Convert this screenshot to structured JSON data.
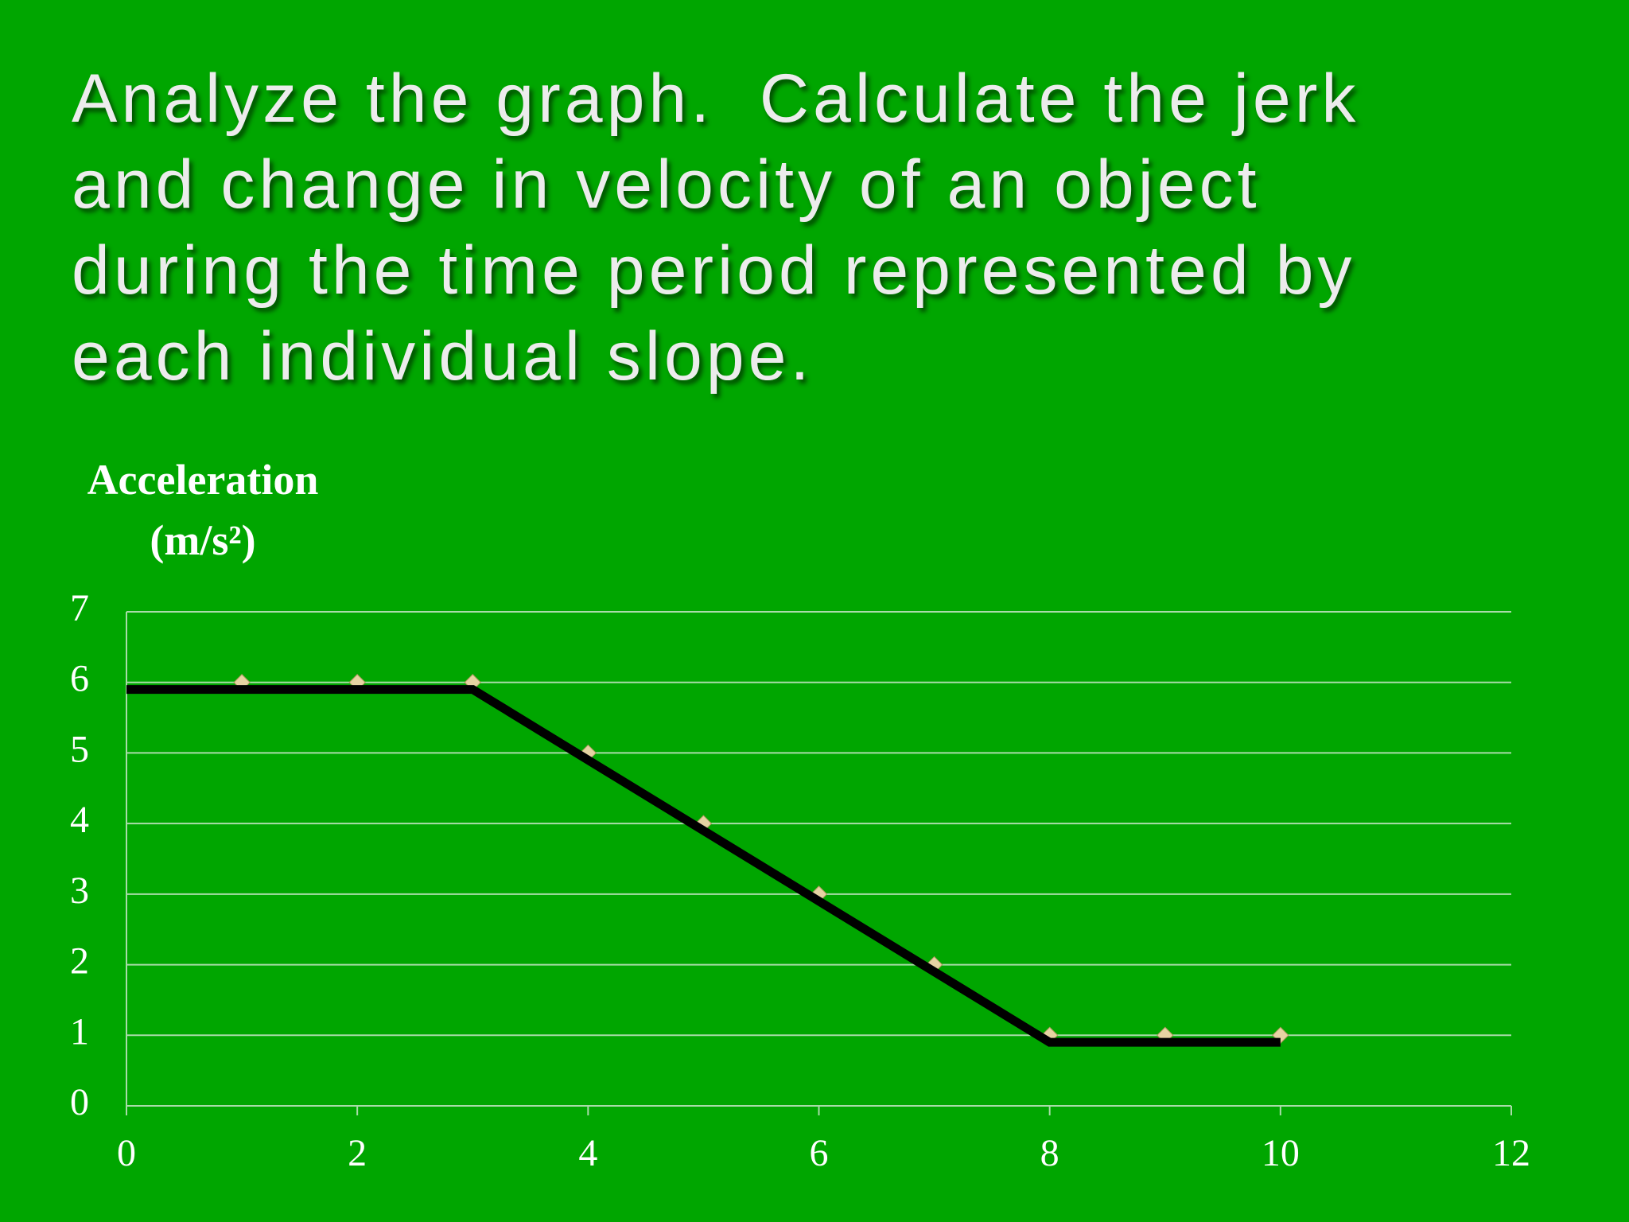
{
  "chart_data": {
    "type": "scatter",
    "title": [
      "Analyze the graph.  Calculate the jerk",
      "and change in velocity of an object",
      "during the time period represented by",
      "each individual slope."
    ],
    "ylabel": "Acceleration (m/s²)",
    "series": [
      {
        "x": [
          1,
          2,
          3,
          4,
          5,
          6,
          7,
          8,
          9,
          10
        ],
        "values": [
          6,
          6,
          6,
          5,
          4,
          3,
          2,
          1,
          1,
          1
        ],
        "color": "#e6d3a3",
        "marker": "diamond"
      },
      {
        "x": [
          0,
          3,
          8,
          10
        ],
        "values": [
          5.9,
          5.9,
          0.9,
          0.9
        ],
        "color": "#000000",
        "marker": "line"
      }
    ],
    "xlim": [
      0,
      12
    ],
    "xticks": [
      0,
      2,
      4,
      6,
      8,
      10,
      12
    ],
    "ylim": [
      0,
      7
    ],
    "yticks": [
      0,
      1,
      2,
      3,
      4,
      5,
      6,
      7
    ],
    "grid": true
  }
}
